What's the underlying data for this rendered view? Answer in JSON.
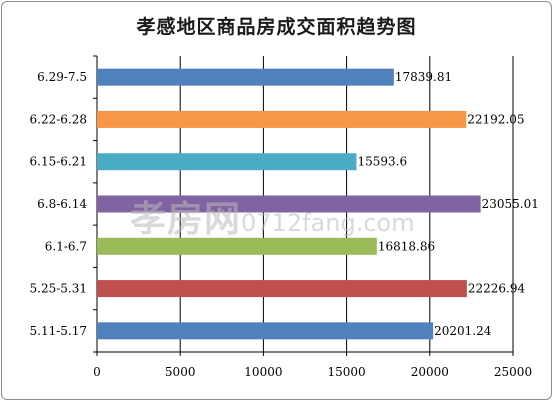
{
  "chart_data": {
    "type": "bar",
    "orientation": "horizontal",
    "title": "孝感地区商品房成交面积趋势图",
    "categories": [
      "6.29-7.5",
      "6.22-6.28",
      "6.15-6.21",
      "6.8-6.14",
      "6.1-6.7",
      "5.25-5.31",
      "5.11-5.17"
    ],
    "values": [
      17839.81,
      22192.05,
      15593.6,
      23055.01,
      16818.86,
      22226.94,
      20201.24
    ],
    "value_labels": [
      "17839.81",
      "22192.05",
      "15593.6",
      "23055.01",
      "16818.86",
      "22226.94",
      "20201.24"
    ],
    "colors": [
      "#4f81bd",
      "#f79646",
      "#4bacc6",
      "#8064a2",
      "#9bbb59",
      "#c0504d",
      "#4f81bd"
    ],
    "xlim": [
      0,
      25000
    ],
    "xticks": [
      "0",
      "5000",
      "10000",
      "15000",
      "20000",
      "25000"
    ],
    "xlabel": "",
    "ylabel": "",
    "grid": "vertical",
    "legend": "none"
  },
  "watermark": {
    "text": "孝房网",
    "url": "0712fang.com"
  }
}
